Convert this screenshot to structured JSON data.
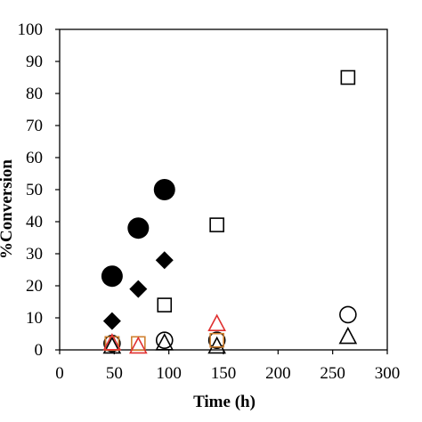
{
  "chart_data": {
    "type": "scatter",
    "title": "",
    "xlabel": "Time (h)",
    "ylabel": "%Conversion",
    "xlim": [
      0,
      300
    ],
    "ylim": [
      0,
      100
    ],
    "xticks": [
      "0",
      "50",
      "100",
      "150",
      "200",
      "250",
      "300"
    ],
    "yticks": [
      "0",
      "10",
      "20",
      "30",
      "40",
      "50",
      "60",
      "70",
      "80",
      "90",
      "100"
    ],
    "grid": false,
    "legend": "none",
    "series": [
      {
        "marker": "filled-circle-large",
        "color": "#000000",
        "points": [
          [
            48,
            23
          ],
          [
            72,
            38
          ],
          [
            96,
            50
          ]
        ]
      },
      {
        "marker": "filled-diamond",
        "color": "#000000",
        "points": [
          [
            48,
            9
          ],
          [
            72,
            19
          ],
          [
            96,
            28
          ]
        ]
      },
      {
        "marker": "open-square",
        "color": "#000000",
        "points": [
          [
            48,
            2
          ],
          [
            96,
            14
          ],
          [
            144,
            39
          ],
          [
            264,
            85
          ]
        ]
      },
      {
        "marker": "open-circle",
        "color": "#000000",
        "points": [
          [
            48,
            2
          ],
          [
            96,
            3
          ],
          [
            144,
            3
          ],
          [
            264,
            11
          ]
        ]
      },
      {
        "marker": "open-triangle",
        "color": "#000000",
        "points": [
          [
            48,
            1
          ],
          [
            96,
            2
          ],
          [
            144,
            1
          ],
          [
            264,
            4
          ]
        ]
      },
      {
        "marker": "open-square",
        "color": "#d08030",
        "points": [
          [
            48,
            2
          ],
          [
            72,
            2
          ],
          [
            144,
            3
          ]
        ]
      },
      {
        "marker": "open-triangle",
        "color": "#e03030",
        "points": [
          [
            48,
            2
          ],
          [
            72,
            1
          ],
          [
            144,
            8
          ]
        ]
      }
    ]
  }
}
